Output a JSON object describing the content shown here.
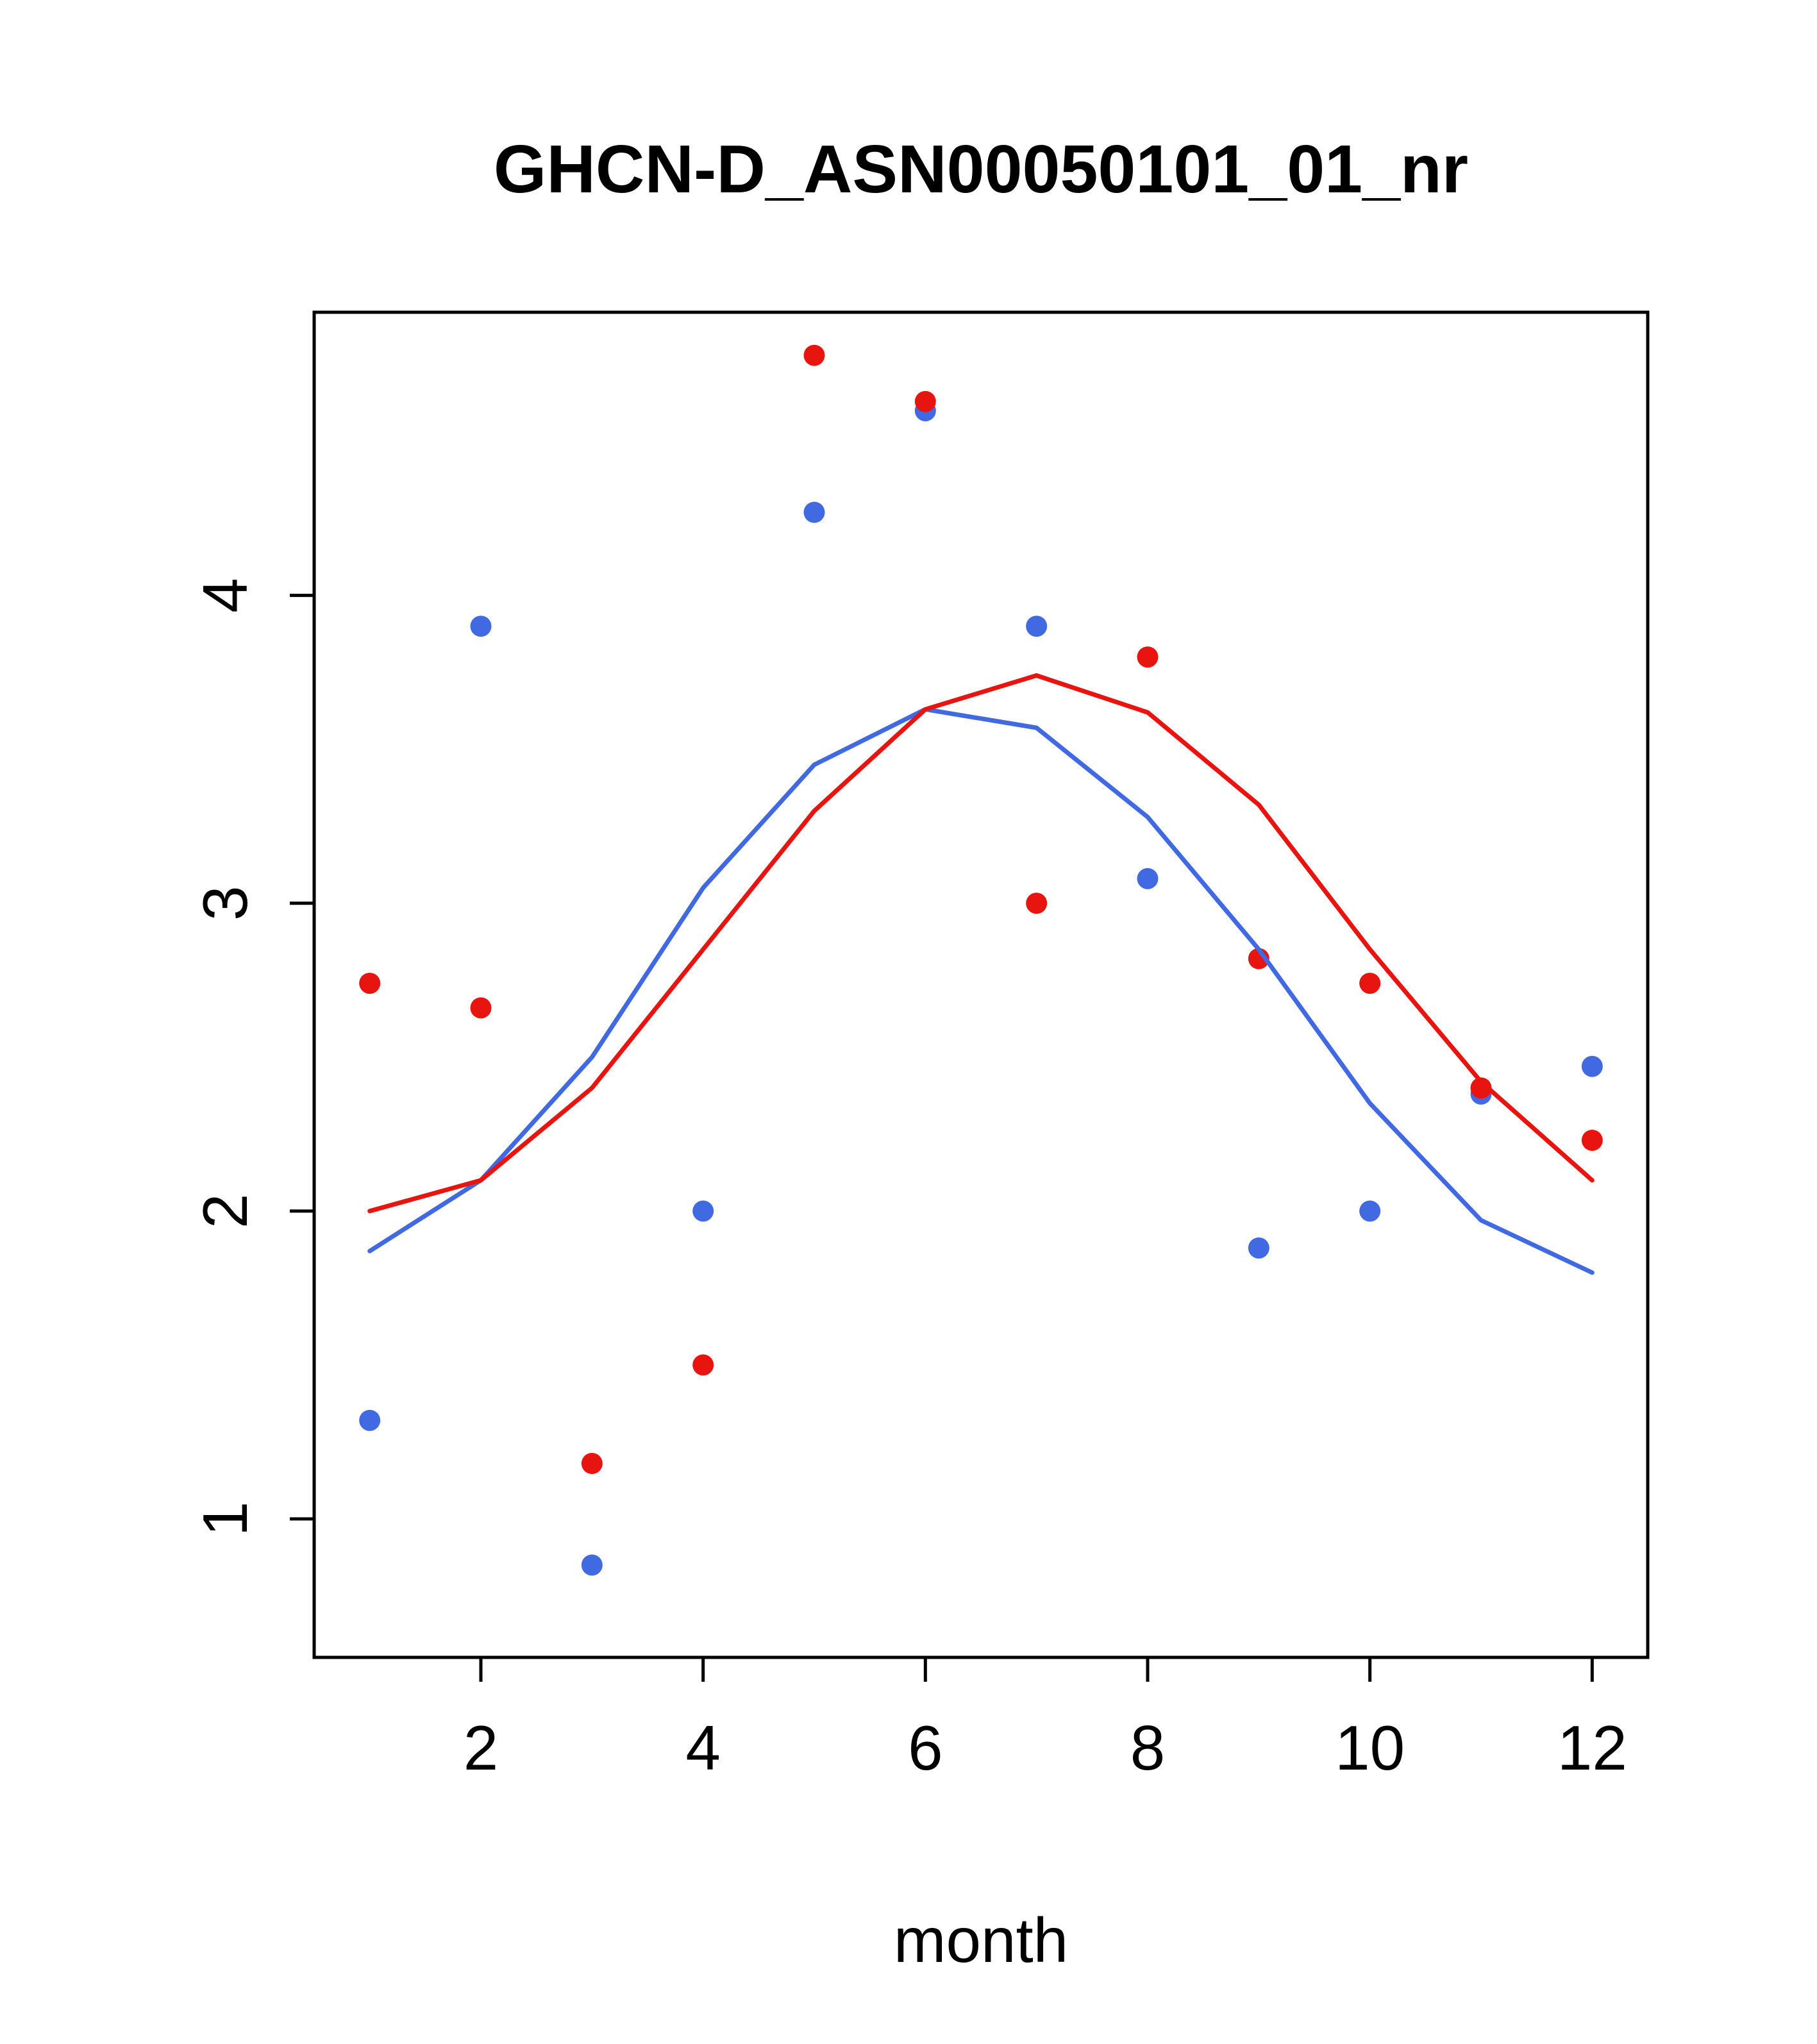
{
  "chart_data": {
    "type": "scatter",
    "title": "GHCN-D_ASN00050101_01_nr",
    "xlabel": "month",
    "ylabel": "",
    "x": [
      1,
      2,
      3,
      4,
      5,
      6,
      7,
      8,
      9,
      10,
      11,
      12
    ],
    "xlim": [
      0.5,
      12.5
    ],
    "ylim": [
      0.55,
      4.92
    ],
    "xticks": [
      2,
      4,
      6,
      8,
      10,
      12
    ],
    "yticks": [
      1,
      2,
      3,
      4
    ],
    "grid": false,
    "legend": "none",
    "colors": {
      "blue": "#4169e1",
      "red": "#e8140f"
    },
    "series": [
      {
        "name": "blue-points",
        "kind": "points",
        "color": "#4169e1",
        "values": [
          1.32,
          3.9,
          0.85,
          2.0,
          4.27,
          4.6,
          3.9,
          3.08,
          1.88,
          2.0,
          2.38,
          2.47
        ]
      },
      {
        "name": "red-points",
        "kind": "points",
        "color": "#e8140f",
        "values": [
          2.74,
          2.66,
          1.18,
          1.5,
          4.78,
          4.63,
          3.0,
          3.8,
          2.82,
          2.74,
          2.4,
          2.23
        ]
      },
      {
        "name": "blue-smoothed-line",
        "kind": "line",
        "color": "#4169e1",
        "values": [
          1.87,
          2.1,
          2.5,
          3.05,
          3.45,
          3.63,
          3.57,
          3.28,
          2.85,
          2.35,
          1.97,
          1.8
        ]
      },
      {
        "name": "red-smoothed-line",
        "kind": "line",
        "color": "#e8140f",
        "values": [
          2.0,
          2.1,
          2.4,
          2.85,
          3.3,
          3.63,
          3.74,
          3.62,
          3.32,
          2.85,
          2.42,
          2.1
        ]
      }
    ]
  }
}
